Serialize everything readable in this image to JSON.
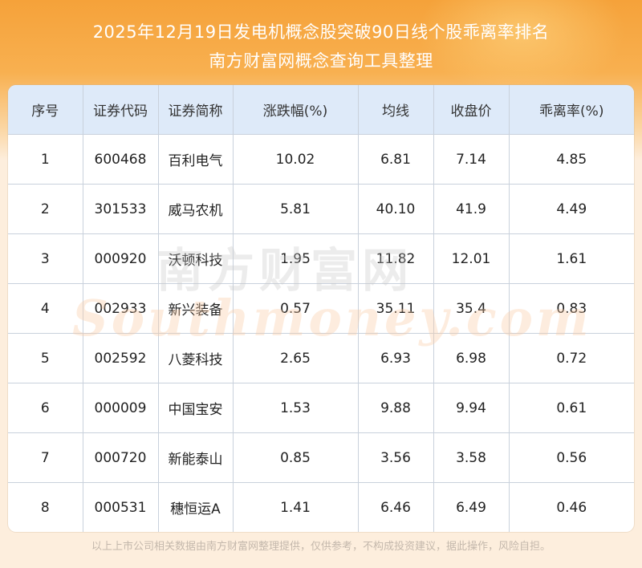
{
  "header": {
    "title_line1": "2025年12月19日发电机概念股突破90日线个股乖离率排名",
    "title_line2": "南方财富网概念查询工具整理"
  },
  "table": {
    "columns": [
      "序号",
      "证券代码",
      "证券简称",
      "涨跌幅(%)",
      "均线",
      "收盘价",
      "乖离率(%)"
    ],
    "rows": [
      [
        "1",
        "600468",
        "百利电气",
        "10.02",
        "6.81",
        "7.14",
        "4.85"
      ],
      [
        "2",
        "301533",
        "威马农机",
        "5.81",
        "40.10",
        "41.9",
        "4.49"
      ],
      [
        "3",
        "000920",
        "沃顿科技",
        "1.95",
        "11.82",
        "12.01",
        "1.61"
      ],
      [
        "4",
        "002933",
        "新兴装备",
        "0.57",
        "35.11",
        "35.4",
        "0.83"
      ],
      [
        "5",
        "002592",
        "八菱科技",
        "2.65",
        "6.93",
        "6.98",
        "0.72"
      ],
      [
        "6",
        "000009",
        "中国宝安",
        "1.53",
        "9.88",
        "9.94",
        "0.61"
      ],
      [
        "7",
        "000720",
        "新能泰山",
        "0.85",
        "3.56",
        "3.58",
        "0.56"
      ],
      [
        "8",
        "000531",
        "穗恒运A",
        "1.41",
        "6.46",
        "6.49",
        "0.46"
      ]
    ]
  },
  "watermark": {
    "cn": "南方财富网",
    "en": "Southmoney.com"
  },
  "footer": {
    "disclaimer": "以上上市公司相关数据由南方财富网整理提供，仅供参考，不构成投资建议，据此操作，风险自担。"
  },
  "colors": {
    "banner": "#f5a23a",
    "header_row": "#deeaf9",
    "grid": "#c9d1dc"
  }
}
